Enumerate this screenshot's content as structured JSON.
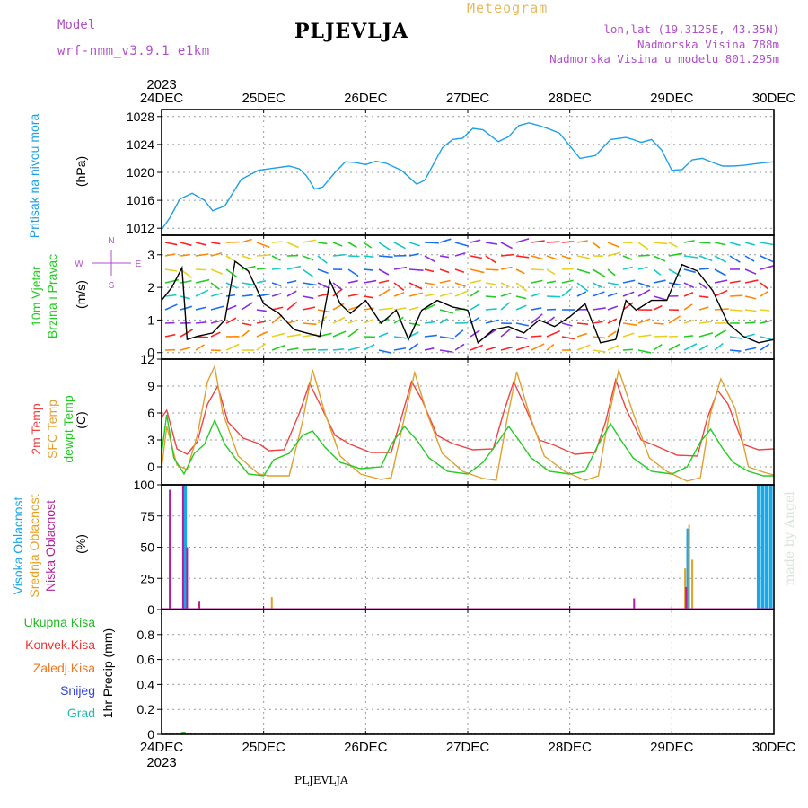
{
  "header": {
    "model_label": "Model",
    "model_run": "wrf-nmm_v3.9.1  e1km",
    "title": "PLJEVLJA",
    "product": "Meteogram",
    "coords": "lon,lat (19.3125E, 43.35N)",
    "altitude": "Nadmorska Visina 788m",
    "model_altitude": "Nadmorska Visina u modelu 801.295m"
  },
  "footer_station": "PLJEVLJA",
  "watermark": "made by Angel",
  "colors": {
    "pressure": "#1ea0e6",
    "t2m": "#ee4444",
    "sfc": "#e0a030",
    "dewpt": "#22cc22",
    "high_cloud": "#18a8e8",
    "mid_cloud": "#e8a020",
    "low_cloud": "#b0209a",
    "total_precip": "#22bb22",
    "conv_precip": "#ee3333",
    "frozen_precip": "#ee7722",
    "snow": "#3344dd",
    "graupel": "#22bbaa",
    "wind_label": "#22cc22",
    "wind_dir_label": "#b050c8"
  },
  "chart_data": [
    {
      "type": "line",
      "panel": "pressure",
      "ylabel_lines": [
        "Pritisak na nivou mora",
        "(hPa)"
      ],
      "ylim": [
        1011,
        1029
      ],
      "yticks": [
        1012,
        1016,
        1020,
        1024,
        1028
      ],
      "xlim": [
        0,
        6
      ],
      "xtick_labels": [
        "24DEC",
        "25DEC",
        "26DEC",
        "27DEC",
        "28DEC",
        "29DEC",
        "30DEC"
      ],
      "year_label": "2023",
      "grid": true,
      "series": [
        {
          "x": [
            0,
            0.08,
            0.18,
            0.3,
            0.42,
            0.5,
            0.62,
            0.78,
            0.95,
            1.1,
            1.25,
            1.35,
            1.42,
            1.5,
            1.58,
            1.7,
            1.8,
            1.9,
            2.0,
            2.1,
            2.2,
            2.35,
            2.5,
            2.58,
            2.65,
            2.75,
            2.85,
            2.95,
            3.05,
            3.15,
            3.3,
            3.4,
            3.5,
            3.6,
            3.7,
            3.8,
            3.9,
            4.0,
            4.1,
            4.25,
            4.4,
            4.55,
            4.62,
            4.7,
            4.8,
            4.9,
            5.0,
            5.1,
            5.2,
            5.3,
            5.42,
            5.5,
            5.6,
            5.7,
            5.8,
            5.92,
            6.0
          ],
          "values": [
            1011.8,
            1013.5,
            1016.2,
            1017.0,
            1016.0,
            1014.5,
            1015.2,
            1019.0,
            1020.3,
            1020.6,
            1020.9,
            1020.5,
            1019.5,
            1017.6,
            1017.9,
            1020.0,
            1021.5,
            1021.4,
            1021.1,
            1021.6,
            1021.3,
            1020.3,
            1018.3,
            1018.9,
            1020.8,
            1023.5,
            1024.7,
            1024.9,
            1026.3,
            1026.1,
            1024.4,
            1025.1,
            1026.7,
            1027.1,
            1026.7,
            1026.2,
            1025.6,
            1023.8,
            1022.0,
            1022.4,
            1024.7,
            1025.0,
            1024.7,
            1024.3,
            1024.7,
            1023.2,
            1020.3,
            1020.4,
            1021.8,
            1022.0,
            1021.3,
            1020.9,
            1020.9,
            1021.0,
            1021.2,
            1021.4,
            1021.5
          ]
        }
      ]
    },
    {
      "type": "line",
      "panel": "wind",
      "ylabel_lines": [
        "10m Vjetar",
        "Brzina i Pravac",
        "(m/s)"
      ],
      "compass": {
        "n": "N",
        "s": "S",
        "e": "E",
        "w": "W"
      },
      "ylim": [
        -0.2,
        3.6
      ],
      "yticks": [
        0,
        1,
        2,
        3
      ],
      "xlim": [
        0,
        6
      ],
      "series": [
        {
          "name": "speed",
          "x": [
            0,
            0.1,
            0.2,
            0.25,
            0.35,
            0.5,
            0.62,
            0.72,
            0.85,
            1.0,
            1.15,
            1.3,
            1.42,
            1.55,
            1.65,
            1.75,
            1.85,
            2.0,
            2.15,
            2.3,
            2.42,
            2.55,
            2.7,
            2.85,
            3.0,
            3.1,
            3.25,
            3.4,
            3.55,
            3.7,
            3.85,
            4.0,
            4.15,
            4.3,
            4.45,
            4.55,
            4.65,
            4.8,
            4.95,
            5.1,
            5.25,
            5.4,
            5.55,
            5.7,
            5.85,
            6.0
          ],
          "values": [
            1.6,
            2.0,
            2.6,
            0.4,
            0.5,
            0.6,
            1.0,
            2.8,
            2.5,
            1.5,
            1.2,
            0.7,
            0.6,
            0.5,
            2.2,
            1.5,
            1.2,
            1.6,
            0.9,
            1.3,
            0.4,
            1.3,
            1.6,
            1.4,
            1.3,
            0.3,
            0.7,
            0.8,
            0.6,
            1.0,
            0.8,
            1.1,
            1.5,
            0.3,
            0.4,
            1.6,
            1.3,
            1.6,
            1.6,
            2.7,
            2.5,
            1.9,
            0.9,
            0.5,
            0.3,
            0.4
          ]
        }
      ]
    },
    {
      "type": "line",
      "panel": "temperature",
      "ylabel_lines": [
        "2m Temp",
        "SFC Temp",
        "dewpt Temp",
        "(C)"
      ],
      "ylim": [
        -2,
        12
      ],
      "yticks": [
        0,
        3,
        6,
        9,
        12
      ],
      "xlim": [
        0,
        6
      ],
      "series": [
        {
          "name": "2m Temp",
          "x": [
            0,
            0.05,
            0.15,
            0.25,
            0.35,
            0.45,
            0.55,
            0.65,
            0.8,
            0.95,
            1.05,
            1.2,
            1.35,
            1.45,
            1.55,
            1.7,
            1.85,
            2.05,
            2.25,
            2.35,
            2.45,
            2.55,
            2.7,
            2.85,
            3.05,
            3.25,
            3.35,
            3.45,
            3.55,
            3.7,
            3.85,
            4.05,
            4.25,
            4.35,
            4.45,
            4.55,
            4.7,
            4.85,
            5.05,
            5.25,
            5.35,
            5.45,
            5.55,
            5.7,
            5.85,
            6.0
          ],
          "values": [
            5.5,
            6.3,
            2.0,
            1.4,
            2.8,
            7.0,
            9.0,
            5.0,
            3.2,
            2.6,
            1.8,
            1.9,
            6.0,
            9.3,
            7.0,
            3.5,
            2.5,
            1.6,
            1.6,
            5.5,
            9.5,
            7.5,
            3.5,
            2.6,
            1.9,
            2.0,
            6.0,
            9.5,
            7.0,
            3.0,
            2.4,
            1.4,
            1.6,
            5.0,
            9.7,
            6.5,
            3.0,
            2.3,
            1.3,
            1.2,
            5.5,
            8.5,
            7.0,
            2.5,
            1.9,
            2.0
          ]
        },
        {
          "name": "SFC Temp",
          "x": [
            0,
            0.05,
            0.15,
            0.25,
            0.35,
            0.45,
            0.52,
            0.6,
            0.75,
            0.95,
            1.05,
            1.25,
            1.38,
            1.48,
            1.6,
            1.75,
            1.95,
            2.15,
            2.25,
            2.38,
            2.48,
            2.6,
            2.75,
            2.95,
            3.15,
            3.28,
            3.38,
            3.48,
            3.6,
            3.75,
            3.95,
            4.15,
            4.28,
            4.38,
            4.48,
            4.62,
            4.78,
            4.95,
            5.15,
            5.28,
            5.38,
            5.48,
            5.62,
            5.75,
            5.9,
            6.0
          ],
          "values": [
            -0.2,
            4.5,
            0.2,
            -0.3,
            3.5,
            9.5,
            11.2,
            6.0,
            1.2,
            -0.8,
            -1.0,
            -1.0,
            5.0,
            10.8,
            6.0,
            1.2,
            -0.8,
            -1.4,
            -1.2,
            5.5,
            10.5,
            6.0,
            1.5,
            -0.5,
            -1.3,
            -1.5,
            5.0,
            10.6,
            6.0,
            1.2,
            -0.5,
            -1.5,
            -1.0,
            5.5,
            10.8,
            6.0,
            1.0,
            -0.5,
            -1.6,
            -1.2,
            6.0,
            9.8,
            6.5,
            0.0,
            -0.6,
            -0.9
          ]
        },
        {
          "name": "dewpt Temp",
          "x": [
            0,
            0.05,
            0.12,
            0.22,
            0.32,
            0.42,
            0.52,
            0.62,
            0.72,
            0.85,
            1.0,
            1.1,
            1.25,
            1.38,
            1.48,
            1.6,
            1.75,
            1.95,
            2.15,
            2.25,
            2.38,
            2.5,
            2.62,
            2.8,
            3.0,
            3.15,
            3.28,
            3.4,
            3.5,
            3.62,
            3.8,
            4.0,
            4.15,
            4.28,
            4.4,
            4.5,
            4.62,
            4.8,
            5.0,
            5.15,
            5.28,
            5.38,
            5.5,
            5.6,
            5.75,
            5.9,
            6.0
          ],
          "values": [
            1.5,
            5.8,
            1.0,
            -0.8,
            1.5,
            2.5,
            5.2,
            2.5,
            1.0,
            -0.8,
            -1.0,
            0.8,
            1.5,
            3.5,
            4.0,
            2.2,
            0.5,
            -0.2,
            0.0,
            2.5,
            4.5,
            3.0,
            1.0,
            -0.5,
            -0.8,
            0.5,
            2.5,
            4.5,
            3.0,
            1.0,
            -0.5,
            -0.8,
            -0.5,
            2.5,
            4.8,
            3.0,
            1.0,
            -0.5,
            -0.8,
            0.0,
            2.8,
            4.2,
            2.0,
            0.5,
            -0.5,
            -1.0,
            -1.0
          ]
        }
      ]
    },
    {
      "type": "bar",
      "panel": "cloud",
      "ylabel_lines": [
        "Visoka Oblacnost",
        "Srednja Oblacnost",
        "Niska Oblacnost",
        "(%)"
      ],
      "ylim": [
        0,
        100
      ],
      "yticks": [
        0,
        25,
        50,
        75,
        100
      ],
      "xlim": [
        0,
        6
      ],
      "series": [
        {
          "name": "Visoka Oblacnost",
          "x": [
            0.22,
            0.23,
            5.16,
            5.85,
            5.89,
            5.93,
            5.97
          ],
          "values": [
            100,
            100,
            65,
            100,
            100,
            100,
            100
          ]
        },
        {
          "name": "Srednja Oblacnost",
          "x": [
            1.08,
            5.13,
            5.17,
            5.2
          ],
          "values": [
            10,
            33,
            68,
            40
          ]
        },
        {
          "name": "Niska Oblacnost",
          "x": [
            0.08,
            0.21,
            0.25,
            0.37,
            4.63,
            5.14
          ],
          "values": [
            96,
            100,
            50,
            7,
            9,
            18
          ]
        }
      ]
    },
    {
      "type": "bar",
      "panel": "precip",
      "ylabel_lines": [
        "1hr Precip (mm)"
      ],
      "legend": [
        "Ukupna Kisa",
        "Konvek.Kisa",
        "Zaledj.Kisa",
        "Snijeg",
        "Grad"
      ],
      "ylim": [
        0,
        1
      ],
      "yticks": [
        0,
        0.2,
        0.4,
        0.6,
        0.8
      ],
      "ytick_labels": [
        "0",
        "0.2",
        "0.4",
        "0.6",
        "0.8"
      ],
      "xlim": [
        0,
        6
      ],
      "xtick_labels": [
        "24DEC",
        "25DEC",
        "26DEC",
        "27DEC",
        "28DEC",
        "29DEC",
        "30DEC"
      ],
      "year_label": "2023",
      "series": [
        {
          "name": "Ukupna Kisa",
          "x": [
            0.2,
            0.22
          ],
          "values": [
            0.02,
            0.02
          ]
        }
      ]
    }
  ]
}
